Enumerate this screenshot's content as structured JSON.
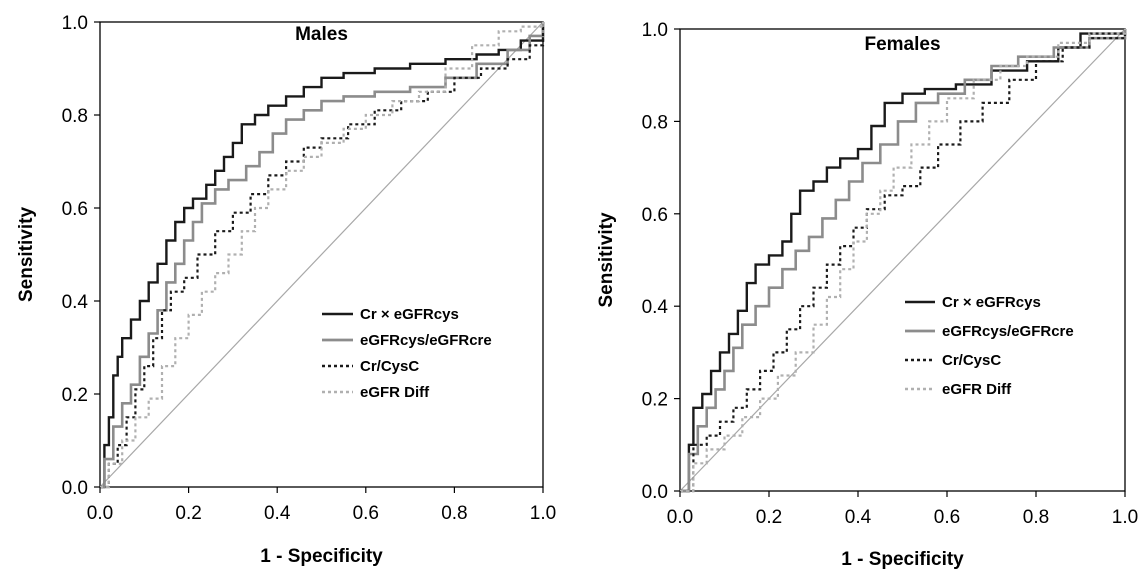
{
  "colors": {
    "dark": "#1a1a1a",
    "mid": "#8c8c8c",
    "light": "#b0b0b0",
    "reference": "#a8a8a8",
    "axis": "#000000"
  },
  "chart_data": [
    {
      "type": "line",
      "title": "Males",
      "xlabel": "1 - Specificity",
      "ylabel": "Sensitivity",
      "xlim": [
        0,
        1
      ],
      "ylim": [
        0,
        1
      ],
      "xticks": [
        "0.0",
        "0.2",
        "0.4",
        "0.6",
        "0.8",
        "1.0"
      ],
      "yticks": [
        "0.0",
        "0.2",
        "0.4",
        "0.6",
        "0.8",
        "1.0"
      ],
      "legend_position": "lower-right",
      "series": [
        {
          "name": "Cr × eGFRcys",
          "style": "solid-dark",
          "points": [
            [
              0,
              0
            ],
            [
              0.01,
              0.09
            ],
            [
              0.02,
              0.15
            ],
            [
              0.03,
              0.24
            ],
            [
              0.04,
              0.28
            ],
            [
              0.05,
              0.32
            ],
            [
              0.07,
              0.36
            ],
            [
              0.09,
              0.4
            ],
            [
              0.11,
              0.44
            ],
            [
              0.13,
              0.48
            ],
            [
              0.15,
              0.53
            ],
            [
              0.17,
              0.57
            ],
            [
              0.19,
              0.6
            ],
            [
              0.21,
              0.62
            ],
            [
              0.24,
              0.65
            ],
            [
              0.26,
              0.68
            ],
            [
              0.28,
              0.71
            ],
            [
              0.3,
              0.74
            ],
            [
              0.32,
              0.78
            ],
            [
              0.35,
              0.8
            ],
            [
              0.38,
              0.82
            ],
            [
              0.42,
              0.84
            ],
            [
              0.46,
              0.86
            ],
            [
              0.5,
              0.88
            ],
            [
              0.55,
              0.89
            ],
            [
              0.62,
              0.9
            ],
            [
              0.7,
              0.91
            ],
            [
              0.78,
              0.92
            ],
            [
              0.85,
              0.93
            ],
            [
              0.9,
              0.94
            ],
            [
              0.95,
              0.96
            ],
            [
              1.0,
              1.0
            ]
          ]
        },
        {
          "name": "eGFRcys/eGFRcre",
          "style": "solid-mid",
          "points": [
            [
              0,
              0
            ],
            [
              0.01,
              0.06
            ],
            [
              0.03,
              0.13
            ],
            [
              0.05,
              0.18
            ],
            [
              0.07,
              0.22
            ],
            [
              0.09,
              0.28
            ],
            [
              0.11,
              0.33
            ],
            [
              0.13,
              0.38
            ],
            [
              0.15,
              0.44
            ],
            [
              0.17,
              0.48
            ],
            [
              0.19,
              0.53
            ],
            [
              0.21,
              0.57
            ],
            [
              0.23,
              0.61
            ],
            [
              0.26,
              0.64
            ],
            [
              0.29,
              0.66
            ],
            [
              0.33,
              0.69
            ],
            [
              0.36,
              0.72
            ],
            [
              0.39,
              0.76
            ],
            [
              0.42,
              0.79
            ],
            [
              0.46,
              0.81
            ],
            [
              0.5,
              0.83
            ],
            [
              0.55,
              0.84
            ],
            [
              0.62,
              0.85
            ],
            [
              0.7,
              0.86
            ],
            [
              0.78,
              0.88
            ],
            [
              0.85,
              0.91
            ],
            [
              0.92,
              0.94
            ],
            [
              0.97,
              0.97
            ],
            [
              1.0,
              1.0
            ]
          ]
        },
        {
          "name": "Cr/CysC",
          "style": "dotted-dark",
          "points": [
            [
              0,
              0
            ],
            [
              0.02,
              0.05
            ],
            [
              0.04,
              0.09
            ],
            [
              0.06,
              0.15
            ],
            [
              0.08,
              0.21
            ],
            [
              0.1,
              0.26
            ],
            [
              0.12,
              0.32
            ],
            [
              0.14,
              0.38
            ],
            [
              0.16,
              0.42
            ],
            [
              0.19,
              0.45
            ],
            [
              0.22,
              0.5
            ],
            [
              0.26,
              0.55
            ],
            [
              0.3,
              0.59
            ],
            [
              0.34,
              0.63
            ],
            [
              0.38,
              0.67
            ],
            [
              0.42,
              0.7
            ],
            [
              0.46,
              0.73
            ],
            [
              0.5,
              0.75
            ],
            [
              0.56,
              0.78
            ],
            [
              0.62,
              0.81
            ],
            [
              0.68,
              0.83
            ],
            [
              0.74,
              0.85
            ],
            [
              0.8,
              0.88
            ],
            [
              0.86,
              0.9
            ],
            [
              0.92,
              0.92
            ],
            [
              0.97,
              0.95
            ],
            [
              1.0,
              1.0
            ]
          ]
        },
        {
          "name": "eGFR Diff",
          "style": "dotted-light",
          "points": [
            [
              0,
              0
            ],
            [
              0.02,
              0.05
            ],
            [
              0.05,
              0.1
            ],
            [
              0.08,
              0.15
            ],
            [
              0.11,
              0.19
            ],
            [
              0.14,
              0.26
            ],
            [
              0.17,
              0.32
            ],
            [
              0.2,
              0.37
            ],
            [
              0.23,
              0.42
            ],
            [
              0.26,
              0.46
            ],
            [
              0.29,
              0.5
            ],
            [
              0.32,
              0.55
            ],
            [
              0.35,
              0.6
            ],
            [
              0.38,
              0.64
            ],
            [
              0.42,
              0.68
            ],
            [
              0.46,
              0.71
            ],
            [
              0.5,
              0.74
            ],
            [
              0.55,
              0.77
            ],
            [
              0.6,
              0.8
            ],
            [
              0.66,
              0.83
            ],
            [
              0.72,
              0.85
            ],
            [
              0.78,
              0.9
            ],
            [
              0.84,
              0.95
            ],
            [
              0.9,
              0.98
            ],
            [
              0.95,
              0.99
            ],
            [
              1.0,
              1.0
            ]
          ]
        }
      ]
    },
    {
      "type": "line",
      "title": "Females",
      "xlabel": "1 - Specificity",
      "ylabel": "Sensitivity",
      "xlim": [
        0,
        1
      ],
      "ylim": [
        0,
        1
      ],
      "xticks": [
        "0.0",
        "0.2",
        "0.4",
        "0.6",
        "0.8",
        "1.0"
      ],
      "yticks": [
        "0.0",
        "0.2",
        "0.4",
        "0.6",
        "0.8",
        "1.0"
      ],
      "legend_position": "lower-right",
      "series": [
        {
          "name": "Cr × eGFRcys",
          "style": "solid-dark",
          "points": [
            [
              0,
              0
            ],
            [
              0.02,
              0.1
            ],
            [
              0.03,
              0.18
            ],
            [
              0.05,
              0.21
            ],
            [
              0.07,
              0.26
            ],
            [
              0.09,
              0.3
            ],
            [
              0.11,
              0.34
            ],
            [
              0.13,
              0.39
            ],
            [
              0.15,
              0.45
            ],
            [
              0.17,
              0.49
            ],
            [
              0.2,
              0.51
            ],
            [
              0.23,
              0.54
            ],
            [
              0.25,
              0.6
            ],
            [
              0.27,
              0.65
            ],
            [
              0.3,
              0.67
            ],
            [
              0.33,
              0.7
            ],
            [
              0.36,
              0.72
            ],
            [
              0.4,
              0.74
            ],
            [
              0.43,
              0.79
            ],
            [
              0.46,
              0.84
            ],
            [
              0.5,
              0.86
            ],
            [
              0.55,
              0.87
            ],
            [
              0.62,
              0.88
            ],
            [
              0.7,
              0.91
            ],
            [
              0.78,
              0.93
            ],
            [
              0.85,
              0.96
            ],
            [
              0.9,
              0.99
            ],
            [
              1.0,
              1.0
            ]
          ]
        },
        {
          "name": "eGFRcys/eGFRcre",
          "style": "solid-mid",
          "points": [
            [
              0,
              0
            ],
            [
              0.02,
              0.08
            ],
            [
              0.04,
              0.14
            ],
            [
              0.06,
              0.18
            ],
            [
              0.08,
              0.22
            ],
            [
              0.1,
              0.26
            ],
            [
              0.12,
              0.31
            ],
            [
              0.14,
              0.36
            ],
            [
              0.17,
              0.4
            ],
            [
              0.2,
              0.44
            ],
            [
              0.23,
              0.48
            ],
            [
              0.26,
              0.52
            ],
            [
              0.29,
              0.55
            ],
            [
              0.32,
              0.59
            ],
            [
              0.35,
              0.63
            ],
            [
              0.38,
              0.67
            ],
            [
              0.41,
              0.71
            ],
            [
              0.45,
              0.75
            ],
            [
              0.49,
              0.8
            ],
            [
              0.53,
              0.84
            ],
            [
              0.58,
              0.86
            ],
            [
              0.64,
              0.89
            ],
            [
              0.7,
              0.92
            ],
            [
              0.76,
              0.94
            ],
            [
              0.84,
              0.96
            ],
            [
              0.92,
              0.98
            ],
            [
              1.0,
              1.0
            ]
          ]
        },
        {
          "name": "Cr/CysC",
          "style": "dotted-dark",
          "points": [
            [
              0,
              0
            ],
            [
              0.03,
              0.1
            ],
            [
              0.06,
              0.12
            ],
            [
              0.09,
              0.15
            ],
            [
              0.12,
              0.18
            ],
            [
              0.15,
              0.22
            ],
            [
              0.18,
              0.26
            ],
            [
              0.21,
              0.3
            ],
            [
              0.24,
              0.35
            ],
            [
              0.27,
              0.4
            ],
            [
              0.3,
              0.44
            ],
            [
              0.33,
              0.49
            ],
            [
              0.36,
              0.53
            ],
            [
              0.39,
              0.57
            ],
            [
              0.42,
              0.61
            ],
            [
              0.46,
              0.64
            ],
            [
              0.5,
              0.66
            ],
            [
              0.54,
              0.7
            ],
            [
              0.58,
              0.75
            ],
            [
              0.63,
              0.8
            ],
            [
              0.68,
              0.84
            ],
            [
              0.74,
              0.89
            ],
            [
              0.8,
              0.93
            ],
            [
              0.86,
              0.96
            ],
            [
              0.92,
              0.98
            ],
            [
              1.0,
              1.0
            ]
          ]
        },
        {
          "name": "eGFR Diff",
          "style": "dotted-light",
          "points": [
            [
              0,
              0
            ],
            [
              0.03,
              0.06
            ],
            [
              0.06,
              0.09
            ],
            [
              0.1,
              0.12
            ],
            [
              0.14,
              0.16
            ],
            [
              0.18,
              0.2
            ],
            [
              0.22,
              0.25
            ],
            [
              0.26,
              0.3
            ],
            [
              0.3,
              0.36
            ],
            [
              0.33,
              0.42
            ],
            [
              0.36,
              0.48
            ],
            [
              0.39,
              0.54
            ],
            [
              0.42,
              0.6
            ],
            [
              0.45,
              0.65
            ],
            [
              0.48,
              0.7
            ],
            [
              0.52,
              0.75
            ],
            [
              0.56,
              0.8
            ],
            [
              0.6,
              0.85
            ],
            [
              0.66,
              0.89
            ],
            [
              0.72,
              0.92
            ],
            [
              0.78,
              0.94
            ],
            [
              0.85,
              0.97
            ],
            [
              0.92,
              0.99
            ],
            [
              1.0,
              1.0
            ]
          ]
        }
      ]
    }
  ]
}
